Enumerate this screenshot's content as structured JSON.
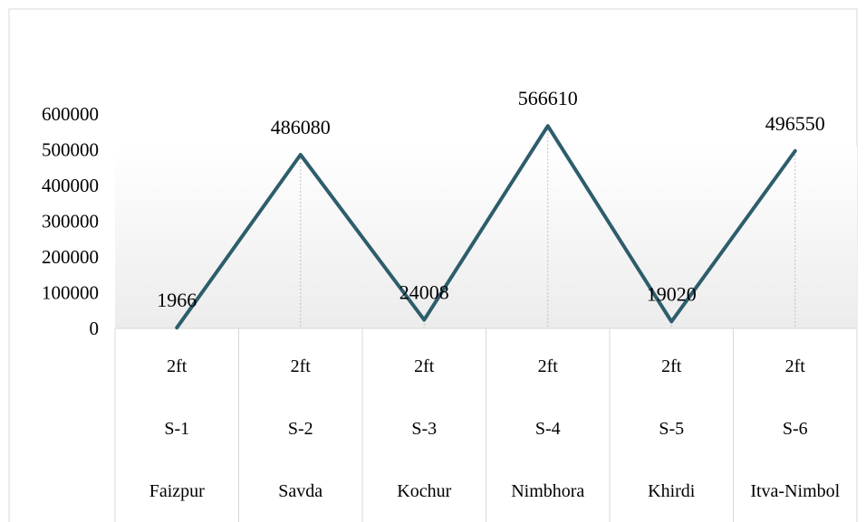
{
  "chart_data": {
    "type": "line",
    "categories": [
      [
        "2ft",
        "S-1",
        "Faizpur"
      ],
      [
        "2ft",
        "S-2",
        "Savda"
      ],
      [
        "2ft",
        "S-3",
        "Kochur"
      ],
      [
        "2ft",
        "S-4",
        "Nimbhora"
      ],
      [
        "2ft",
        "S-5",
        "Khirdi"
      ],
      [
        "2ft",
        "S-6",
        "Itva-Nimbol"
      ]
    ],
    "series": [
      {
        "values": [
          1966,
          486080,
          24008,
          566610,
          19020,
          496550
        ]
      }
    ],
    "data_labels": [
      "1966",
      "486080",
      "24008",
      "566610",
      "19020",
      "496550"
    ],
    "y_ticks": [
      "0",
      "100000",
      "200000",
      "300000",
      "400000",
      "500000",
      "600000"
    ],
    "ylim": [
      0,
      600000
    ],
    "grid": false,
    "legend": "none",
    "colors": {
      "line": "#2e5d6b",
      "plot_gradient_top": "#ffffff",
      "plot_gradient_bottom": "#ececec",
      "frame": "#d9d9d9",
      "drop_lines": "#bfbfbf"
    }
  }
}
